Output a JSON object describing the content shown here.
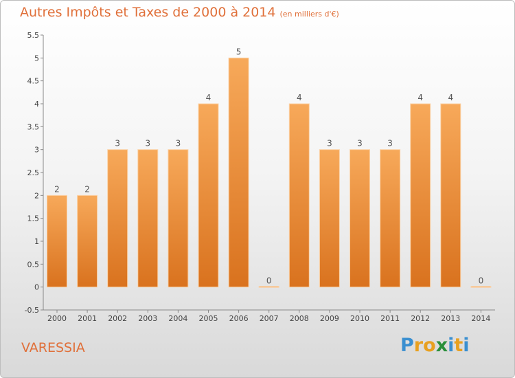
{
  "title": "Autres Impôts et Taxes de 2000 à 2014",
  "unit": "(en milliers d'€)",
  "place": "VARESSIA",
  "logo": {
    "text": "Proxiti",
    "letters": [
      "P",
      "r",
      "o",
      "x",
      "i",
      "t",
      "i"
    ],
    "colors": [
      "#3a8fd0",
      "#e8a020",
      "#e8a020",
      "#2a8f3a",
      "#3a8fd0",
      "#e8a020",
      "#3a8fd0"
    ]
  },
  "colors": {
    "bar_light": "#f7a95a",
    "bar_dark": "#d9721e",
    "text_accent": "#e0703a"
  },
  "chart_data": {
    "type": "bar",
    "categories": [
      "2000",
      "2001",
      "2002",
      "2003",
      "2004",
      "2005",
      "2006",
      "2007",
      "2008",
      "2009",
      "2010",
      "2011",
      "2012",
      "2013",
      "2014"
    ],
    "values": [
      2,
      2,
      3,
      3,
      3,
      4,
      5,
      0,
      4,
      3,
      3,
      3,
      4,
      4,
      0
    ],
    "data_labels": [
      "2",
      "2",
      "3",
      "3",
      "3",
      "4",
      "5",
      "0",
      "4",
      "3",
      "3",
      "3",
      "4",
      "4",
      "0"
    ],
    "y_ticks": [
      "5.5",
      "5",
      "4.5",
      "4",
      "3.5",
      "3",
      "2.5",
      "2",
      "1.5",
      "1",
      "0.5",
      "0",
      "-0.5"
    ],
    "y_tick_values": [
      5.5,
      5,
      4.5,
      4,
      3.5,
      3,
      2.5,
      2,
      1.5,
      1,
      0.5,
      0,
      -0.5
    ],
    "ylim": [
      -0.5,
      5.5
    ],
    "grid": false
  }
}
